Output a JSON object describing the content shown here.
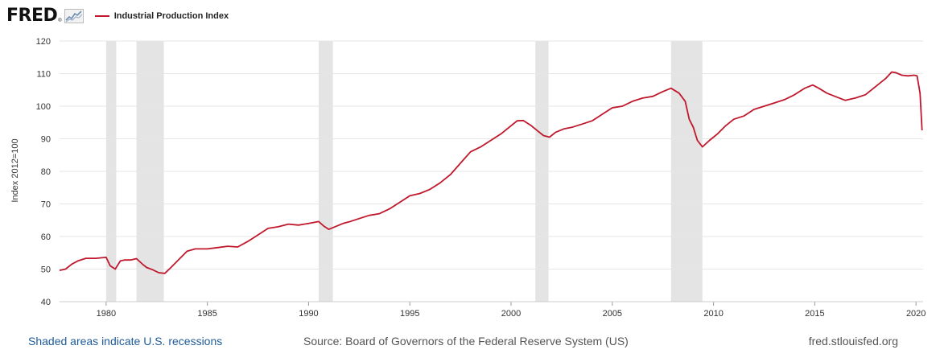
{
  "brand": {
    "logo_text": "FRED",
    "logo_mark": "®"
  },
  "colors": {
    "series": "#c0182c",
    "recession": "#e4e4e4",
    "grid": "#e6e6e6",
    "link": "#1f5b99"
  },
  "footer": {
    "recession_note": "Shaded areas indicate U.S. recessions",
    "source": "Source: Board of Governors of the Federal Reserve System (US)",
    "site": "fred.stlouisfed.org"
  },
  "chart_data": {
    "type": "line",
    "title": "",
    "legend": [
      "Industrial Production Index"
    ],
    "ylabel": "Index 2012=100",
    "xlabel": "",
    "xlim": [
      1977.7,
      2020.35
    ],
    "ylim": [
      40,
      120
    ],
    "yticks": [
      40,
      50,
      60,
      70,
      80,
      90,
      100,
      110,
      120
    ],
    "xticks": [
      1980,
      1985,
      1990,
      1995,
      2000,
      2005,
      2010,
      2015,
      2020
    ],
    "grid": true,
    "recessions": [
      [
        1980.0,
        1980.5
      ],
      [
        1981.5,
        1982.85
      ],
      [
        1990.5,
        1991.2
      ],
      [
        2001.2,
        2001.85
      ],
      [
        2007.9,
        2009.45
      ]
    ],
    "series": [
      {
        "name": "Industrial Production Index",
        "x": [
          1977.7,
          1978.0,
          1978.3,
          1978.6,
          1979.0,
          1979.5,
          1980.0,
          1980.2,
          1980.45,
          1980.7,
          1980.9,
          1981.2,
          1981.5,
          1981.8,
          1982.0,
          1982.3,
          1982.6,
          1982.9,
          1983.2,
          1983.6,
          1984.0,
          1984.4,
          1985.0,
          1985.5,
          1986.0,
          1986.5,
          1987.0,
          1987.5,
          1988.0,
          1988.5,
          1989.0,
          1989.5,
          1990.0,
          1990.5,
          1990.75,
          1991.0,
          1991.3,
          1991.7,
          1992.0,
          1992.5,
          1993.0,
          1993.5,
          1994.0,
          1994.5,
          1995.0,
          1995.5,
          1996.0,
          1996.5,
          1997.0,
          1997.5,
          1998.0,
          1998.5,
          1999.0,
          1999.5,
          2000.0,
          2000.3,
          2000.6,
          2001.0,
          2001.3,
          2001.6,
          2001.9,
          2002.2,
          2002.6,
          2003.0,
          2003.5,
          2004.0,
          2004.5,
          2005.0,
          2005.5,
          2006.0,
          2006.5,
          2007.0,
          2007.5,
          2007.9,
          2008.3,
          2008.6,
          2008.8,
          2009.0,
          2009.2,
          2009.45,
          2009.8,
          2010.2,
          2010.6,
          2011.0,
          2011.5,
          2012.0,
          2012.5,
          2013.0,
          2013.5,
          2014.0,
          2014.5,
          2014.9,
          2015.2,
          2015.6,
          2016.0,
          2016.5,
          2017.0,
          2017.5,
          2018.0,
          2018.5,
          2018.8,
          2019.0,
          2019.3,
          2019.6,
          2019.9,
          2020.05,
          2020.2,
          2020.3
        ],
        "values": [
          49.6,
          50.0,
          51.5,
          52.5,
          53.3,
          53.3,
          53.6,
          51.0,
          50.0,
          52.5,
          52.8,
          52.8,
          53.2,
          51.5,
          50.5,
          49.8,
          48.9,
          48.7,
          50.5,
          53.0,
          55.5,
          56.2,
          56.2,
          56.6,
          57.0,
          56.8,
          58.5,
          60.5,
          62.5,
          63.0,
          63.8,
          63.5,
          64.0,
          64.6,
          63.2,
          62.2,
          63.0,
          64.0,
          64.5,
          65.5,
          66.5,
          67.0,
          68.5,
          70.5,
          72.5,
          73.2,
          74.5,
          76.5,
          79.0,
          82.5,
          86.0,
          87.5,
          89.5,
          91.5,
          94.0,
          95.5,
          95.6,
          94.0,
          92.5,
          91.0,
          90.5,
          92.0,
          93.0,
          93.5,
          94.5,
          95.5,
          97.5,
          99.5,
          100.0,
          101.5,
          102.5,
          103.0,
          104.5,
          105.5,
          104.0,
          101.5,
          96.0,
          93.5,
          89.5,
          87.5,
          89.5,
          91.5,
          94.0,
          96.0,
          97.0,
          99.0,
          100.0,
          101.0,
          102.0,
          103.5,
          105.5,
          106.5,
          105.5,
          104.0,
          103.0,
          101.8,
          102.5,
          103.5,
          106.0,
          108.5,
          110.5,
          110.3,
          109.5,
          109.3,
          109.5,
          109.3,
          104.0,
          92.6
        ]
      }
    ]
  }
}
